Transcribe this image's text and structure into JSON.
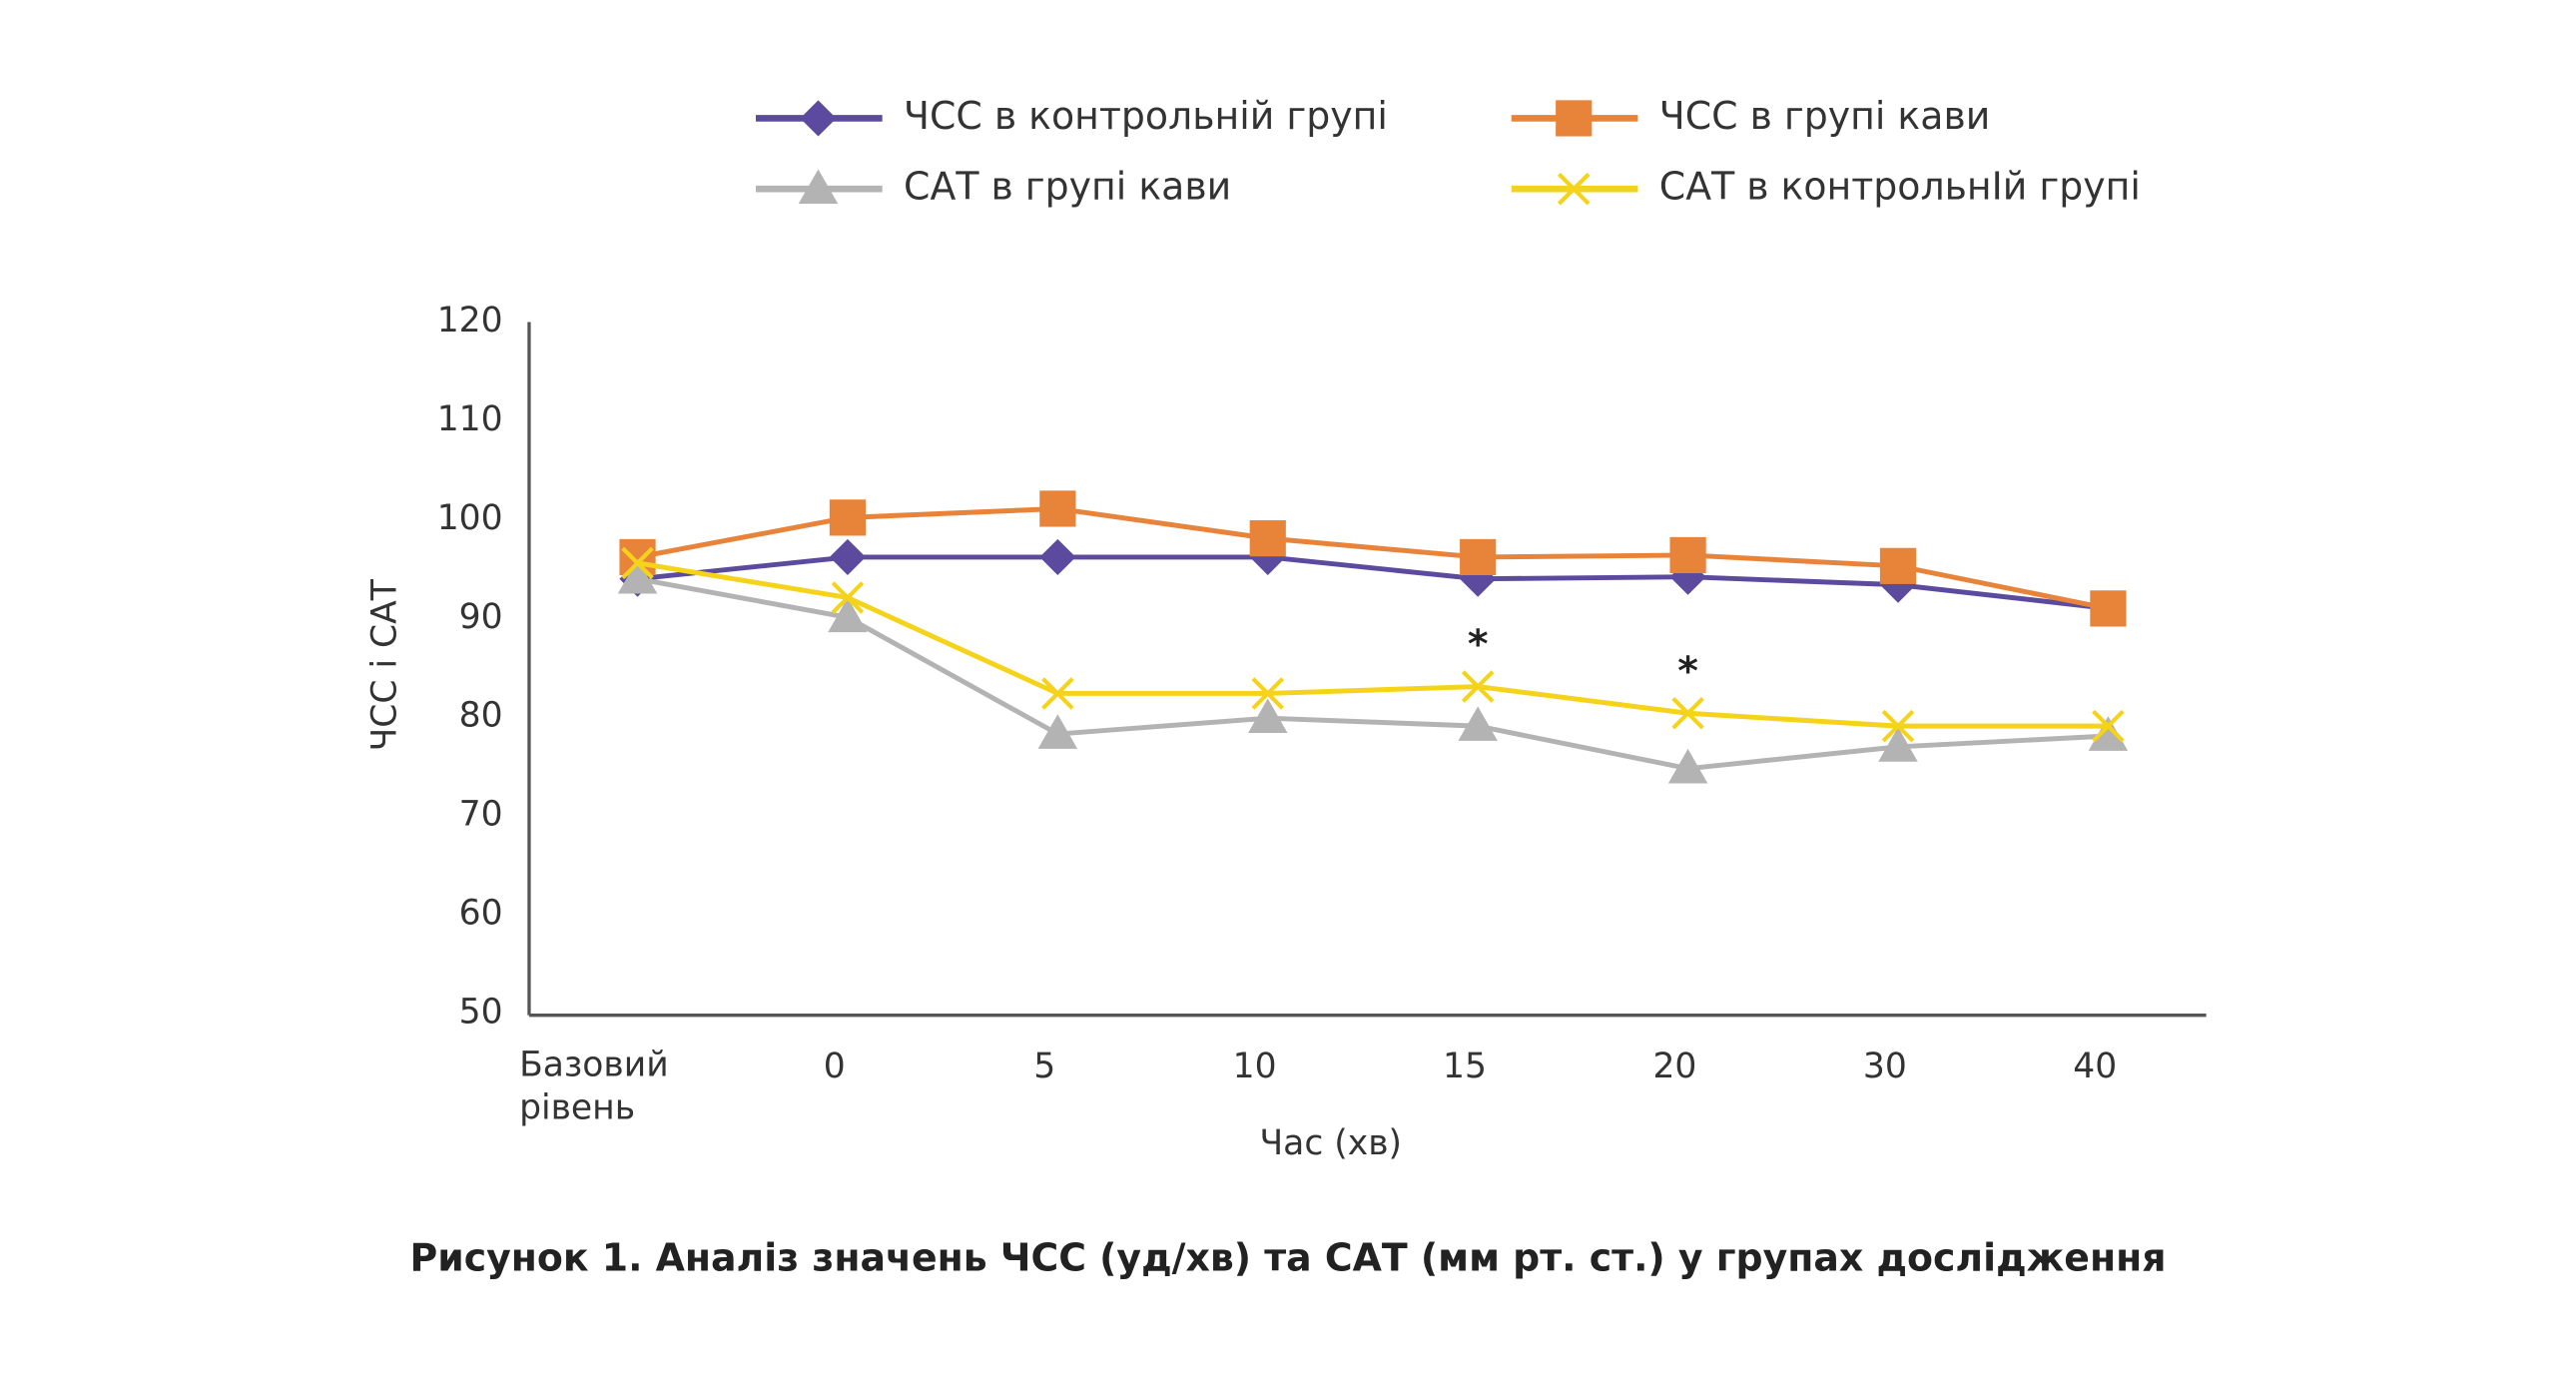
{
  "chart_data": {
    "type": "line",
    "title": "Рисунок 1. Аналіз значень ЧСС (уд/хв) та САТ (мм рт. ст.) у групах дослідження",
    "x_label": "Час (хв)",
    "y_label": "ЧСС і САТ",
    "categories": [
      "Базовий рівень",
      "0",
      "5",
      "10",
      "15",
      "20",
      "30",
      "40"
    ],
    "ylim": [
      50,
      120
    ],
    "yticks": [
      50,
      60,
      70,
      80,
      90,
      100,
      110,
      120
    ],
    "grid": false,
    "series": [
      {
        "name": "ЧСС в контрольній групі",
        "color": "#5b4a9e",
        "marker": "diamond",
        "values": [
          94,
          96.2,
          96.2,
          96.2,
          94,
          94.2,
          93.4,
          91
        ]
      },
      {
        "name": "ЧСС в групі кави",
        "color": "#e8833a",
        "marker": "square",
        "values": [
          96.2,
          100.2,
          101.1,
          98.1,
          96.2,
          96.4,
          95.3,
          91
        ]
      },
      {
        "name": "САТ в групі кави",
        "color": "#b3b3b3",
        "marker": "triangle",
        "values": [
          94,
          90.1,
          78.3,
          79.9,
          79.1,
          74.8,
          77,
          78.1
        ]
      },
      {
        "name": "САТ в контрольнІй групі",
        "color": "#f5d31a",
        "marker": "x",
        "values": [
          95.6,
          92.1,
          82.4,
          82.4,
          83.1,
          80.4,
          79.1,
          79.1
        ]
      }
    ],
    "annotations": [
      {
        "text": "*",
        "x": "15"
      },
      {
        "text": "*",
        "x": "20"
      }
    ]
  }
}
